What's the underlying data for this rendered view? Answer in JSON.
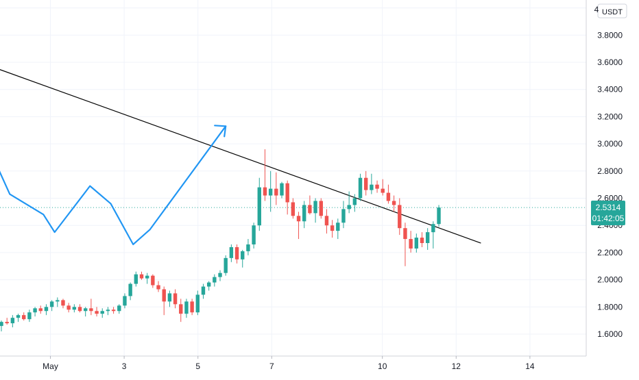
{
  "chart_data": {
    "type": "candlestick",
    "currency_label": "USDT",
    "y_axis": {
      "ylim": [
        1.5,
        4.0
      ],
      "ticks": [
        "1.6000",
        "1.8000",
        "2.0000",
        "2.2000",
        "2.4000",
        "2.6000",
        "2.8000",
        "3.0000",
        "3.2000",
        "3.4000",
        "3.6000",
        "3.8000"
      ],
      "top_tick_partial": "4"
    },
    "x_axis": {
      "tick_labels": [
        {
          "day": 1,
          "label": "May"
        },
        {
          "day": 3,
          "label": "3"
        },
        {
          "day": 5,
          "label": "5"
        },
        {
          "day": 7,
          "label": "7"
        },
        {
          "day": 10,
          "label": "10"
        },
        {
          "day": 12,
          "label": "12"
        },
        {
          "day": 14,
          "label": "14"
        }
      ]
    },
    "last_price": {
      "value": "2.5314",
      "countdown": "01:42:05",
      "price": 2.5314
    },
    "colors": {
      "up": "#26a69a",
      "down": "#ef5350",
      "drawing": "#2196f3",
      "trendline": "#000000",
      "price_line": "#26a69a"
    },
    "candles": [
      [
        1.66,
        1.7,
        1.62,
        1.69
      ],
      [
        1.69,
        1.72,
        1.67,
        1.68
      ],
      [
        1.68,
        1.74,
        1.65,
        1.72
      ],
      [
        1.72,
        1.75,
        1.69,
        1.74
      ],
      [
        1.74,
        1.76,
        1.7,
        1.71
      ],
      [
        1.71,
        1.78,
        1.69,
        1.76
      ],
      [
        1.76,
        1.8,
        1.73,
        1.79
      ],
      [
        1.79,
        1.81,
        1.75,
        1.77
      ],
      [
        1.77,
        1.82,
        1.74,
        1.8
      ],
      [
        1.8,
        1.85,
        1.77,
        1.84
      ],
      [
        1.84,
        1.87,
        1.8,
        1.85
      ],
      [
        1.85,
        1.86,
        1.79,
        1.81
      ],
      [
        1.81,
        1.83,
        1.76,
        1.78
      ],
      [
        1.78,
        1.82,
        1.76,
        1.8
      ],
      [
        1.8,
        1.82,
        1.76,
        1.77
      ],
      [
        1.77,
        1.8,
        1.73,
        1.79
      ],
      [
        1.79,
        1.86,
        1.74,
        1.77
      ],
      [
        1.77,
        1.8,
        1.73,
        1.75
      ],
      [
        1.75,
        1.79,
        1.72,
        1.77
      ],
      [
        1.77,
        1.8,
        1.74,
        1.78
      ],
      [
        1.78,
        1.8,
        1.75,
        1.77
      ],
      [
        1.77,
        1.82,
        1.75,
        1.81
      ],
      [
        1.81,
        1.9,
        1.79,
        1.88
      ],
      [
        1.88,
        1.98,
        1.85,
        1.97
      ],
      [
        1.97,
        2.06,
        1.95,
        2.04
      ],
      [
        2.04,
        2.06,
        2.0,
        2.01
      ],
      [
        2.01,
        2.05,
        1.97,
        2.03
      ],
      [
        2.03,
        2.04,
        1.94,
        1.96
      ],
      [
        1.96,
        1.99,
        1.91,
        1.93
      ],
      [
        1.93,
        1.95,
        1.74,
        1.84
      ],
      [
        1.84,
        1.92,
        1.8,
        1.9
      ],
      [
        1.9,
        1.93,
        1.79,
        1.82
      ],
      [
        1.82,
        1.86,
        1.69,
        1.75
      ],
      [
        1.75,
        1.86,
        1.72,
        1.84
      ],
      [
        1.84,
        1.86,
        1.74,
        1.76
      ],
      [
        1.76,
        1.92,
        1.74,
        1.89
      ],
      [
        1.89,
        1.97,
        1.86,
        1.95
      ],
      [
        1.95,
        1.99,
        1.92,
        1.98
      ],
      [
        1.98,
        2.04,
        1.95,
        2.02
      ],
      [
        2.02,
        2.07,
        1.99,
        2.05
      ],
      [
        2.05,
        2.18,
        2.03,
        2.16
      ],
      [
        2.16,
        2.26,
        2.13,
        2.24
      ],
      [
        2.24,
        2.26,
        2.12,
        2.15
      ],
      [
        2.15,
        2.22,
        2.09,
        2.21
      ],
      [
        2.21,
        2.3,
        2.18,
        2.26
      ],
      [
        2.26,
        2.42,
        2.23,
        2.4
      ],
      [
        2.4,
        2.75,
        2.36,
        2.68
      ],
      [
        2.68,
        2.96,
        2.58,
        2.62
      ],
      [
        2.62,
        2.8,
        2.5,
        2.67
      ],
      [
        2.67,
        2.79,
        2.55,
        2.62
      ],
      [
        2.62,
        2.72,
        2.6,
        2.71
      ],
      [
        2.71,
        2.73,
        2.48,
        2.57
      ],
      [
        2.57,
        2.6,
        2.45,
        2.47
      ],
      [
        2.47,
        2.5,
        2.3,
        2.43
      ],
      [
        2.43,
        2.58,
        2.38,
        2.55
      ],
      [
        2.55,
        2.62,
        2.48,
        2.49
      ],
      [
        2.49,
        2.6,
        2.42,
        2.58
      ],
      [
        2.58,
        2.6,
        2.45,
        2.47
      ],
      [
        2.47,
        2.52,
        2.34,
        2.4
      ],
      [
        2.4,
        2.44,
        2.31,
        2.36
      ],
      [
        2.36,
        2.45,
        2.3,
        2.42
      ],
      [
        2.42,
        2.58,
        2.38,
        2.52
      ],
      [
        2.52,
        2.65,
        2.49,
        2.55
      ],
      [
        2.55,
        2.63,
        2.5,
        2.6
      ],
      [
        2.6,
        2.78,
        2.58,
        2.75
      ],
      [
        2.75,
        2.8,
        2.62,
        2.66
      ],
      [
        2.66,
        2.78,
        2.63,
        2.7
      ],
      [
        2.7,
        2.73,
        2.64,
        2.67
      ],
      [
        2.67,
        2.74,
        2.62,
        2.64
      ],
      [
        2.64,
        2.7,
        2.56,
        2.58
      ],
      [
        2.58,
        2.62,
        2.5,
        2.55
      ],
      [
        2.55,
        2.6,
        2.33,
        2.38
      ],
      [
        2.38,
        2.42,
        2.1,
        2.3
      ],
      [
        2.3,
        2.36,
        2.2,
        2.23
      ],
      [
        2.23,
        2.34,
        2.2,
        2.31
      ],
      [
        2.31,
        2.35,
        2.24,
        2.27
      ],
      [
        2.27,
        2.38,
        2.22,
        2.35
      ],
      [
        2.35,
        2.43,
        2.23,
        2.41
      ],
      [
        2.41,
        2.55,
        2.39,
        2.5314
      ]
    ],
    "trendline": [
      [
        -0.5,
        3.55
      ],
      [
        85.5,
        2.27
      ]
    ],
    "projection_path": [
      [
        -0.8,
        2.84
      ],
      [
        1.5,
        2.63
      ],
      [
        7.5,
        2.48
      ],
      [
        9.5,
        2.35
      ],
      [
        15.8,
        2.69
      ],
      [
        19.5,
        2.56
      ],
      [
        23.5,
        2.26
      ],
      [
        26.5,
        2.37
      ],
      [
        40.0,
        3.13
      ]
    ],
    "projection_arrow_tip": [
      40.0,
      3.13
    ]
  }
}
